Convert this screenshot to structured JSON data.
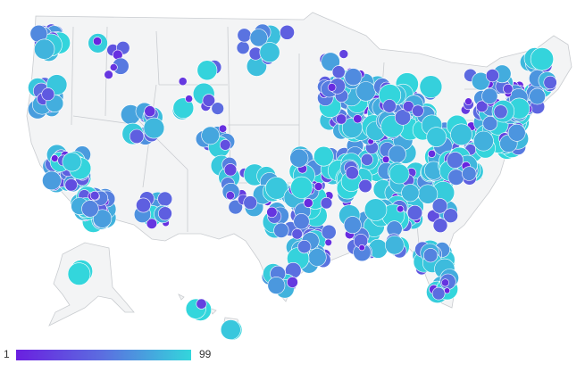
{
  "legend": {
    "min_label": "1",
    "max_label": "99",
    "color_low": "#6a1fe0",
    "color_mid": "#5b6fe0",
    "color_high": "#33d6dc"
  },
  "map": {
    "region": "United States",
    "background_color": "#f3f4f5",
    "border_color": "#c9ccd0"
  }
}
